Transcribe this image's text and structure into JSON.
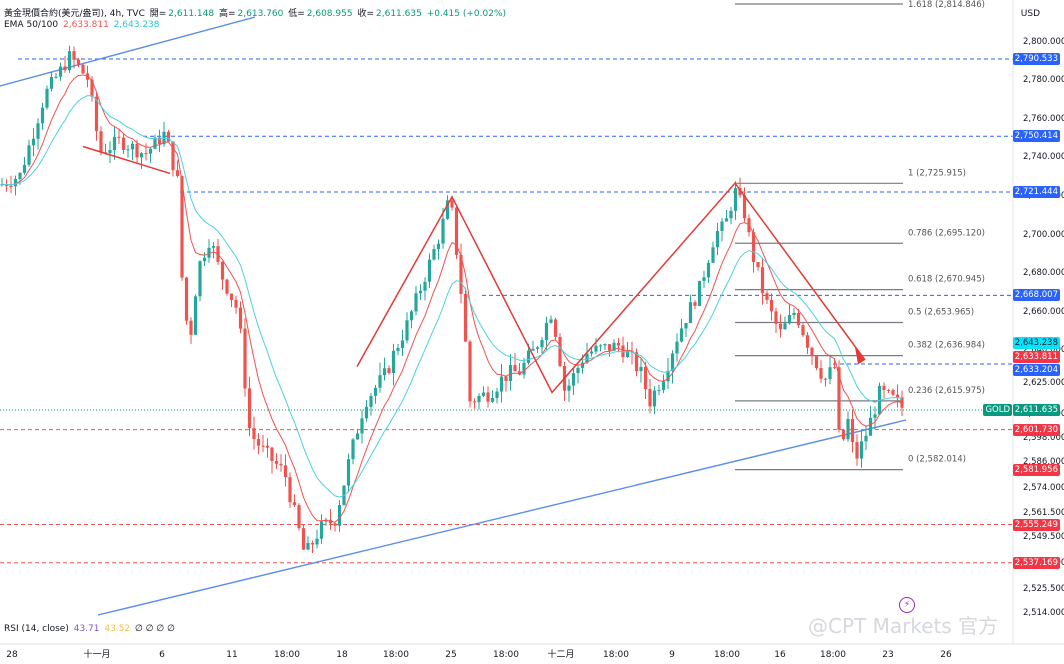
{
  "header": {
    "symbol": "黃金現價合約(美元/盎司), 4h, TVC",
    "o_label": "開=",
    "o_val": "2,611.148",
    "h_label": "高=",
    "h_val": "2,613.760",
    "l_label": "低=",
    "l_val": "2,608.955",
    "c_label": "收=",
    "c_val": "2,611.635",
    "change": "+0.415 (+0.02%)",
    "ema_label": "EMA 50/100",
    "ema50": "2,633.811",
    "ema100": "2,643.238",
    "currency": "USD"
  },
  "rsi": {
    "label": "RSI (14, close)",
    "v1": "43.71",
    "v2": "43.52",
    "rest": "∅ ∅ ∅ ∅"
  },
  "watermark": "@CPT Markets 官方",
  "colors": {
    "up": "#26a69a",
    "down": "#ef5350",
    "ema50": "#ef5350",
    "ema100": "#4dd0e1",
    "trend": "#5b8def",
    "pattern": "#e53935",
    "gold": "#089981"
  },
  "chart_data": {
    "type": "candlestick",
    "y_ticks": [
      "2,800.000",
      "2,780.000",
      "2,760.000",
      "2,740.000",
      "2,720.000",
      "2,700.000",
      "2,680.000",
      "2,660.000",
      "2,640.000",
      "2,625.000",
      "2,610.000",
      "2,598.000",
      "2,586.000",
      "2,574.000",
      "2,561.500",
      "2,549.500",
      "2,537.500",
      "2,525.500",
      "2,514.000"
    ],
    "x_ticks": [
      "28",
      "十一月",
      "6",
      "11",
      "18:00",
      "18",
      "18:00",
      "25",
      "18:00",
      "十二月",
      "18:00",
      "9",
      "18:00",
      "16",
      "18:00",
      "23",
      "26"
    ],
    "price_labels": [
      {
        "text": "2,790.533",
        "kind": "blue"
      },
      {
        "text": "2,750.414",
        "kind": "blue"
      },
      {
        "text": "2,721.444",
        "kind": "blue"
      },
      {
        "text": "2,668.007",
        "kind": "blue"
      },
      {
        "text": "2,643.238",
        "kind": "cyan"
      },
      {
        "text": "2,633.811",
        "kind": "red"
      },
      {
        "text": "2,633.204",
        "kind": "blue"
      },
      {
        "text": "GOLD",
        "kind": "gold-tag"
      },
      {
        "text": "2,611.635",
        "kind": "gold"
      },
      {
        "text": "2,601.730",
        "kind": "red"
      },
      {
        "text": "2,581.956",
        "kind": "red"
      },
      {
        "text": "2,555.249",
        "kind": "red"
      },
      {
        "text": "2,537.169",
        "kind": "red"
      }
    ],
    "fib_levels": [
      {
        "ratio": "1.618",
        "price": "2,814.846",
        "value": 2814.846
      },
      {
        "ratio": "1",
        "price": "2,725.915",
        "value": 2725.915
      },
      {
        "ratio": "0.786",
        "price": "2,695.120",
        "value": 2695.12
      },
      {
        "ratio": "0.618",
        "price": "2,670.945",
        "value": 2670.945
      },
      {
        "ratio": "0.5",
        "price": "2,653.965",
        "value": 2653.965
      },
      {
        "ratio": "0.382",
        "price": "2,636.984",
        "value": 2636.984
      },
      {
        "ratio": "0.236",
        "price": "2,615.975",
        "value": 2615.975
      },
      {
        "ratio": "0",
        "price": "2,582.014",
        "value": 2582.014
      }
    ],
    "last_close": 2611.635
  }
}
